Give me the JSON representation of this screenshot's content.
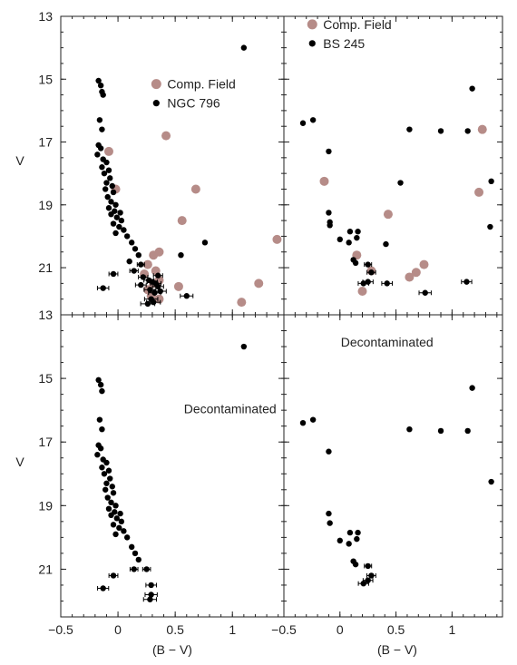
{
  "figure": {
    "ylabel": "V",
    "xlabel": "(B − V)"
  },
  "axes": {
    "x_ticks": [
      {
        "v": -0.5,
        "label": "−0.5"
      },
      {
        "v": 0,
        "label": "0"
      },
      {
        "v": 0.5,
        "label": "0.5"
      },
      {
        "v": 1,
        "label": "1"
      }
    ],
    "x_ticks_right_extra": [
      {
        "v": 1.0,
        "label": "1"
      }
    ],
    "y_ticks": [
      {
        "v": 13,
        "label": "13"
      },
      {
        "v": 15,
        "label": "15"
      },
      {
        "v": 17,
        "label": "17"
      },
      {
        "v": 19,
        "label": "19"
      },
      {
        "v": 21,
        "label": "21"
      }
    ]
  },
  "colors": {
    "field": "#b68c88",
    "cluster": "#000000"
  },
  "chart_data": [
    {
      "type": "scatter",
      "panel": "top-left",
      "xlim": [
        -0.5,
        1.45
      ],
      "ylim": [
        22.5,
        13
      ],
      "grid": false,
      "legend": {
        "placement": "top-right",
        "entries": [
          "Comp. Field",
          "NGC 796"
        ]
      },
      "annotation": "",
      "series": [
        {
          "name": "Comp. Field",
          "color": "#b68c88",
          "points": [
            [
              -0.08,
              17.3
            ],
            [
              -0.02,
              18.5
            ],
            [
              0.42,
              16.8
            ],
            [
              0.68,
              18.5
            ],
            [
              0.56,
              19.5
            ],
            [
              1.39,
              20.1
            ],
            [
              0.36,
              20.5
            ],
            [
              0.31,
              20.6
            ],
            [
              0.26,
              20.9
            ],
            [
              0.33,
              21.1
            ],
            [
              0.23,
              21.2
            ],
            [
              0.36,
              21.4
            ],
            [
              0.31,
              21.5
            ],
            [
              0.26,
              21.7
            ],
            [
              0.53,
              21.6
            ],
            [
              1.23,
              21.5
            ],
            [
              1.08,
              22.1
            ],
            [
              0.36,
              22.0
            ],
            [
              0.29,
              21.9
            ]
          ]
        },
        {
          "name": "NGC 796",
          "color": "#000000",
          "points": [
            [
              1.1,
              14.0
            ],
            [
              -0.17,
              15.05
            ],
            [
              -0.15,
              15.2
            ],
            [
              -0.14,
              15.4
            ],
            [
              -0.13,
              15.5
            ],
            [
              -0.16,
              16.3
            ],
            [
              -0.14,
              16.6
            ],
            [
              -0.17,
              17.1
            ],
            [
              -0.15,
              17.2
            ],
            [
              -0.18,
              17.4
            ],
            [
              -0.13,
              17.55
            ],
            [
              -0.1,
              17.65
            ],
            [
              -0.14,
              17.8
            ],
            [
              -0.08,
              17.9
            ],
            [
              -0.12,
              18.0
            ],
            [
              -0.07,
              18.15
            ],
            [
              -0.1,
              18.3
            ],
            [
              -0.05,
              18.4
            ],
            [
              -0.11,
              18.5
            ],
            [
              -0.04,
              18.6
            ],
            [
              -0.09,
              18.75
            ],
            [
              -0.06,
              18.9
            ],
            [
              -0.02,
              19.0
            ],
            [
              -0.08,
              19.1
            ],
            [
              -0.03,
              19.2
            ],
            [
              0.02,
              19.25
            ],
            [
              -0.06,
              19.3
            ],
            [
              -0.01,
              19.4
            ],
            [
              0.03,
              19.5
            ],
            [
              -0.04,
              19.6
            ],
            [
              0.01,
              19.7
            ],
            [
              0.05,
              19.8
            ],
            [
              -0.02,
              19.9
            ],
            [
              0.08,
              20.0
            ],
            [
              0.12,
              20.2
            ],
            [
              0.15,
              20.4
            ],
            [
              0.18,
              20.6
            ],
            [
              0.1,
              20.8
            ],
            [
              0.2,
              20.9
            ],
            [
              0.14,
              21.1
            ],
            [
              0.22,
              21.3
            ],
            [
              0.27,
              21.4
            ],
            [
              0.3,
              21.45
            ],
            [
              0.33,
              21.5
            ],
            [
              0.35,
              21.6
            ],
            [
              0.28,
              21.7
            ],
            [
              0.32,
              21.8
            ],
            [
              0.37,
              21.75
            ],
            [
              0.29,
              22.0
            ],
            [
              0.31,
              22.1
            ],
            [
              0.26,
              22.15
            ],
            [
              0.55,
              20.6
            ],
            [
              0.76,
              20.2
            ],
            [
              -0.04,
              21.2
            ],
            [
              -0.13,
              21.65
            ],
            [
              0.6,
              21.9
            ],
            [
              0.35,
              21.25
            ],
            [
              0.2,
              21.55
            ]
          ]
        }
      ]
    },
    {
      "type": "scatter",
      "panel": "top-right",
      "xlim": [
        -0.5,
        1.45
      ],
      "ylim": [
        22.5,
        13
      ],
      "grid": false,
      "legend": {
        "placement": "top-left",
        "entries": [
          "Comp. Field",
          "BS 245"
        ]
      },
      "annotation": "",
      "series": [
        {
          "name": "Comp. Field",
          "color": "#b68c88",
          "points": [
            [
              -0.14,
              18.25
            ],
            [
              0.43,
              19.3
            ],
            [
              1.27,
              16.6
            ],
            [
              1.24,
              18.6
            ],
            [
              0.15,
              20.6
            ],
            [
              0.28,
              21.1
            ],
            [
              0.62,
              21.3
            ],
            [
              0.68,
              21.15
            ],
            [
              0.75,
              20.9
            ],
            [
              0.2,
              21.75
            ]
          ]
        },
        {
          "name": "BS 245",
          "color": "#000000",
          "points": [
            [
              -0.33,
              16.4
            ],
            [
              -0.24,
              16.3
            ],
            [
              -0.1,
              17.3
            ],
            [
              -0.1,
              19.25
            ],
            [
              -0.09,
              19.55
            ],
            [
              -0.09,
              19.65
            ],
            [
              0.0,
              20.1
            ],
            [
              0.08,
              20.2
            ],
            [
              0.09,
              19.85
            ],
            [
              0.16,
              19.85
            ],
            [
              0.15,
              20.05
            ],
            [
              0.12,
              20.75
            ],
            [
              0.14,
              20.85
            ],
            [
              0.21,
              21.5
            ],
            [
              0.25,
              21.45
            ],
            [
              0.25,
              20.9
            ],
            [
              0.28,
              21.15
            ],
            [
              0.41,
              20.25
            ],
            [
              0.54,
              18.3
            ],
            [
              0.62,
              16.6
            ],
            [
              0.9,
              16.65
            ],
            [
              1.14,
              16.65
            ],
            [
              1.18,
              15.3
            ],
            [
              1.35,
              18.25
            ],
            [
              1.34,
              19.7
            ],
            [
              0.42,
              21.5
            ],
            [
              0.76,
              21.8
            ],
            [
              1.13,
              21.45
            ]
          ]
        }
      ]
    },
    {
      "type": "scatter",
      "panel": "bottom-left",
      "xlim": [
        -0.5,
        1.45
      ],
      "ylim": [
        22.5,
        13
      ],
      "grid": false,
      "legend": null,
      "annotation": "Decontaminated",
      "series": [
        {
          "name": "",
          "color": "#000000",
          "points": [
            [
              1.1,
              14.0
            ],
            [
              -0.17,
              15.05
            ],
            [
              -0.15,
              15.2
            ],
            [
              -0.14,
              15.4
            ],
            [
              -0.16,
              16.3
            ],
            [
              -0.14,
              16.6
            ],
            [
              -0.17,
              17.1
            ],
            [
              -0.15,
              17.2
            ],
            [
              -0.18,
              17.4
            ],
            [
              -0.13,
              17.55
            ],
            [
              -0.1,
              17.65
            ],
            [
              -0.14,
              17.8
            ],
            [
              -0.08,
              17.9
            ],
            [
              -0.12,
              18.0
            ],
            [
              -0.07,
              18.15
            ],
            [
              -0.1,
              18.3
            ],
            [
              -0.05,
              18.4
            ],
            [
              -0.11,
              18.5
            ],
            [
              -0.04,
              18.6
            ],
            [
              -0.09,
              18.75
            ],
            [
              -0.06,
              18.9
            ],
            [
              -0.02,
              19.0
            ],
            [
              -0.08,
              19.1
            ],
            [
              -0.03,
              19.2
            ],
            [
              0.02,
              19.25
            ],
            [
              -0.06,
              19.3
            ],
            [
              -0.01,
              19.4
            ],
            [
              0.03,
              19.5
            ],
            [
              -0.04,
              19.6
            ],
            [
              0.01,
              19.7
            ],
            [
              0.05,
              19.8
            ],
            [
              -0.02,
              19.9
            ],
            [
              0.08,
              20.0
            ],
            [
              0.12,
              20.3
            ],
            [
              0.15,
              20.5
            ],
            [
              0.18,
              20.7
            ],
            [
              0.14,
              21.0
            ],
            [
              0.25,
              21.0
            ],
            [
              0.29,
              21.5
            ],
            [
              0.29,
              21.8
            ],
            [
              0.28,
              21.95
            ],
            [
              -0.04,
              21.2
            ],
            [
              -0.13,
              21.6
            ]
          ]
        }
      ]
    },
    {
      "type": "scatter",
      "panel": "bottom-right",
      "xlim": [
        -0.5,
        1.45
      ],
      "ylim": [
        22.5,
        13
      ],
      "grid": false,
      "legend": null,
      "annotation": "Decontaminated",
      "series": [
        {
          "name": "",
          "color": "#000000",
          "points": [
            [
              -0.33,
              16.4
            ],
            [
              -0.24,
              16.3
            ],
            [
              -0.1,
              17.3
            ],
            [
              -0.1,
              19.25
            ],
            [
              -0.09,
              19.55
            ],
            [
              0.0,
              20.1
            ],
            [
              0.08,
              20.2
            ],
            [
              0.09,
              19.85
            ],
            [
              0.16,
              19.85
            ],
            [
              0.15,
              20.05
            ],
            [
              0.12,
              20.75
            ],
            [
              0.14,
              20.85
            ],
            [
              0.21,
              21.45
            ],
            [
              0.25,
              21.35
            ],
            [
              0.25,
              20.9
            ],
            [
              0.28,
              21.2
            ],
            [
              0.62,
              16.6
            ],
            [
              0.9,
              16.65
            ],
            [
              1.14,
              16.65
            ],
            [
              1.18,
              15.3
            ],
            [
              1.35,
              18.25
            ]
          ]
        }
      ]
    }
  ]
}
